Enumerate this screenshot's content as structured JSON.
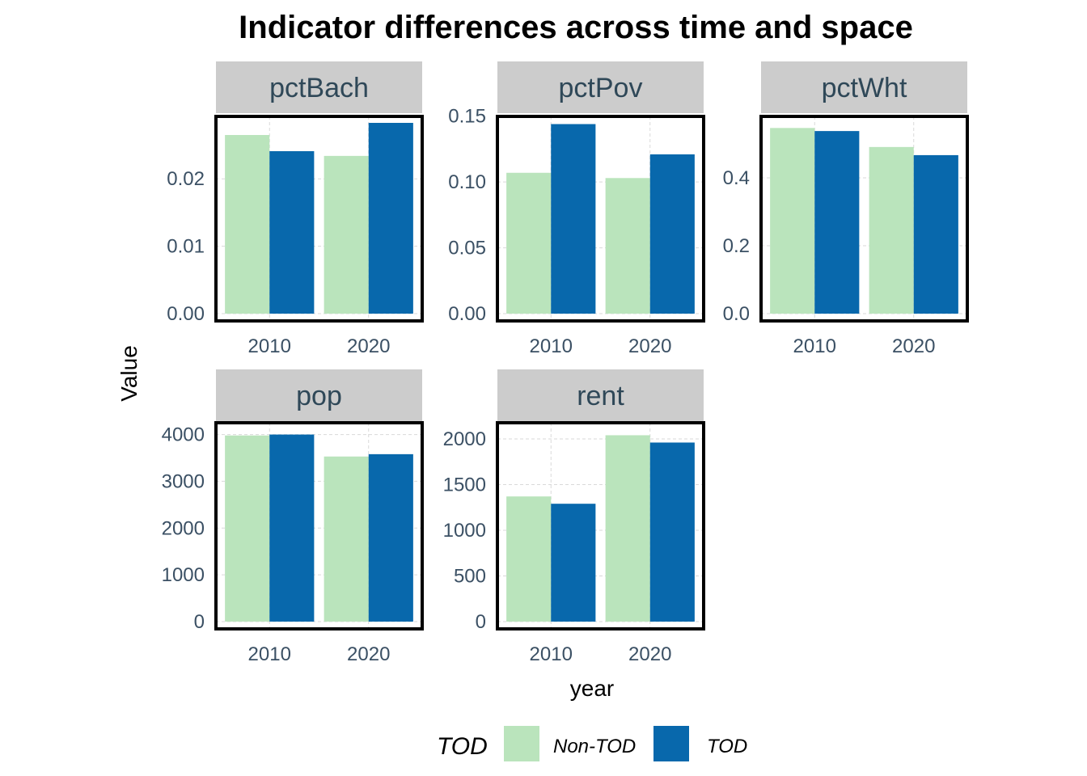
{
  "chart_data": {
    "type": "bar",
    "title": "Indicator differences across time and space",
    "xlabel": "year",
    "ylabel": "Value",
    "legend": {
      "title": "TOD",
      "position": "bottom",
      "entries": [
        {
          "name": "Non-TOD",
          "color": "#bae4bc"
        },
        {
          "name": "TOD",
          "color": "#0868ac"
        }
      ]
    },
    "categories": [
      "2010",
      "2020"
    ],
    "facets": [
      {
        "name": "pctBach",
        "ylim": [
          0,
          0.0289
        ],
        "yticks": [
          "0.00",
          "0.01",
          "0.02"
        ],
        "ytick_values": [
          0,
          0.01,
          0.02
        ],
        "series": [
          {
            "name": "Non-TOD",
            "values": [
              0.0265,
              0.0234
            ]
          },
          {
            "name": "TOD",
            "values": [
              0.0241,
              0.0283
            ]
          }
        ]
      },
      {
        "name": "pctPov",
        "ylim": [
          0,
          0.148
        ],
        "yticks": [
          "0.00",
          "0.05",
          "0.10",
          "0.15"
        ],
        "ytick_values": [
          0,
          0.05,
          0.1,
          0.15
        ],
        "series": [
          {
            "name": "Non-TOD",
            "values": [
              0.107,
              0.103
            ]
          },
          {
            "name": "TOD",
            "values": [
              0.144,
              0.121
            ]
          }
        ]
      },
      {
        "name": "pctWht",
        "ylim": [
          0,
          0.574
        ],
        "yticks": [
          "0.0",
          "0.2",
          "0.4"
        ],
        "ytick_values": [
          0,
          0.2,
          0.4
        ],
        "series": [
          {
            "name": "Non-TOD",
            "values": [
              0.547,
              0.491
            ]
          },
          {
            "name": "TOD",
            "values": [
              0.538,
              0.467
            ]
          }
        ]
      },
      {
        "name": "pop",
        "ylim": [
          0,
          4200
        ],
        "yticks": [
          "0",
          "1000",
          "2000",
          "3000",
          "4000"
        ],
        "ytick_values": [
          0,
          1000,
          2000,
          3000,
          4000
        ],
        "series": [
          {
            "name": "Non-TOD",
            "values": [
              3980,
              3530
            ]
          },
          {
            "name": "TOD",
            "values": [
              4000,
              3580
            ]
          }
        ]
      },
      {
        "name": "rent",
        "ylim": [
          0,
          2150
        ],
        "yticks": [
          "0",
          "500",
          "1000",
          "1500",
          "2000"
        ],
        "ytick_values": [
          0,
          500,
          1000,
          1500,
          2000
        ],
        "series": [
          {
            "name": "Non-TOD",
            "values": [
              1370,
              2040
            ]
          },
          {
            "name": "TOD",
            "values": [
              1290,
              1960
            ]
          }
        ]
      }
    ]
  }
}
